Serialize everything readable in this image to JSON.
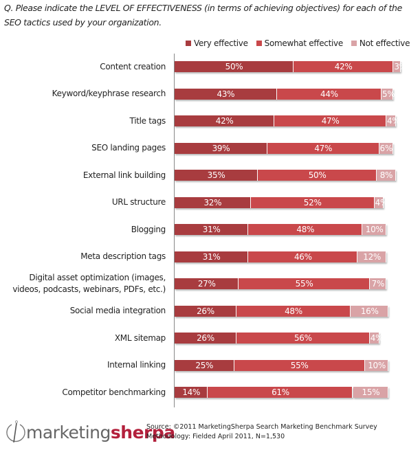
{
  "chart_data": {
    "type": "bar",
    "orientation": "horizontal",
    "stacked": true,
    "title": "Q. Please indicate the LEVEL OF EFFECTIVENESS (in terms of achieving objectives) for each of the SEO tactics used by your organization.",
    "xlabel": "",
    "ylabel": "",
    "xlim": [
      0,
      100
    ],
    "grid": false,
    "legend_position": "top-right",
    "categories": [
      "Content creation",
      "Keyword/keyphrase research",
      "Title tags",
      "SEO landing pages",
      "External link building",
      "URL structure",
      "Blogging",
      "Meta description tags",
      "Digital asset optimization (images, videos, podcasts, webinars, PDFs, etc.)",
      "Social media integration",
      "XML sitemap",
      "Internal linking",
      "Competitor benchmarking"
    ],
    "category_lines": [
      [
        "Content creation"
      ],
      [
        "Keyword/keyphrase research"
      ],
      [
        "Title tags"
      ],
      [
        "SEO landing pages"
      ],
      [
        "External link building"
      ],
      [
        "URL structure"
      ],
      [
        "Blogging"
      ],
      [
        "Meta description tags"
      ],
      [
        "Digital asset optimization (images,",
        "videos, podcasts, webinars, PDFs, etc.)"
      ],
      [
        "Social media integration"
      ],
      [
        "XML sitemap"
      ],
      [
        "Internal linking"
      ],
      [
        "Competitor benchmarking"
      ]
    ],
    "series": [
      {
        "name": "Very effective",
        "color": "#a83c3f",
        "values": [
          50,
          43,
          42,
          39,
          35,
          32,
          31,
          31,
          27,
          26,
          26,
          25,
          14
        ]
      },
      {
        "name": "Somewhat effective",
        "color": "#c9484b",
        "values": [
          42,
          44,
          47,
          47,
          50,
          52,
          48,
          46,
          55,
          48,
          56,
          55,
          61
        ]
      },
      {
        "name": "Not effective",
        "color": "#d9a3a6",
        "values": [
          3,
          5,
          4,
          6,
          8,
          4,
          10,
          12,
          7,
          16,
          4,
          10,
          15
        ]
      }
    ],
    "value_suffix": "%"
  },
  "footer": {
    "logo_light": "marketing",
    "logo_bold": "sherpa",
    "source_line": "Source: ©2011 MarketingSherpa Search Marketing Benchmark Survey",
    "methodology_line": "Methodology: Fielded April 2011, N=1,530"
  }
}
